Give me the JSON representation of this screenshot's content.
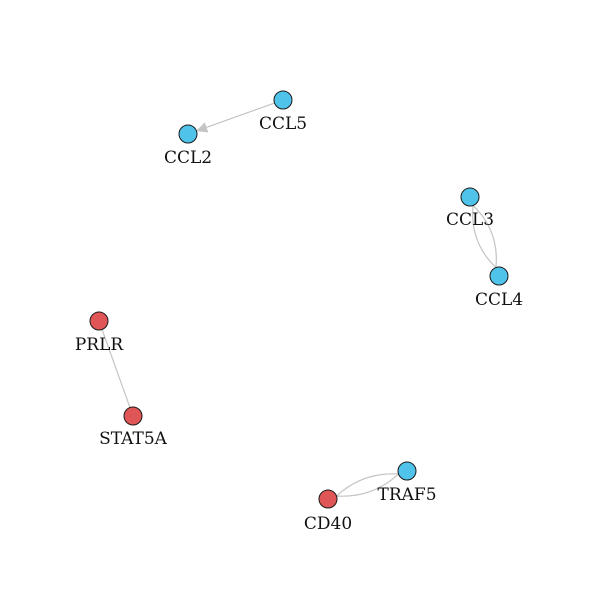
{
  "colors": {
    "blue_node": "#4fc3ea",
    "red_node": "#e05555",
    "edge": "#c4c4c4",
    "background": "#ffffff"
  },
  "nodes": [
    {
      "id": "CCL5",
      "label": "CCL5",
      "group": "blue"
    },
    {
      "id": "CCL2",
      "label": "CCL2",
      "group": "blue"
    },
    {
      "id": "CCL3",
      "label": "CCL3",
      "group": "blue"
    },
    {
      "id": "CCL4",
      "label": "CCL4",
      "group": "blue"
    },
    {
      "id": "PRLR",
      "label": "PRLR",
      "group": "red"
    },
    {
      "id": "STAT5A",
      "label": "STAT5A",
      "group": "red"
    },
    {
      "id": "TRAF5",
      "label": "TRAF5",
      "group": "blue"
    },
    {
      "id": "CD40",
      "label": "CD40",
      "group": "red"
    }
  ],
  "edges": [
    {
      "source": "CCL5",
      "target": "CCL2",
      "directed": true
    },
    {
      "source": "CCL3",
      "target": "CCL4",
      "directed": false
    },
    {
      "source": "CCL4",
      "target": "CCL3",
      "directed": false
    },
    {
      "source": "PRLR",
      "target": "STAT5A",
      "directed": false
    },
    {
      "source": "TRAF5",
      "target": "CD40",
      "directed": false
    },
    {
      "source": "CD40",
      "target": "TRAF5",
      "directed": false
    }
  ]
}
